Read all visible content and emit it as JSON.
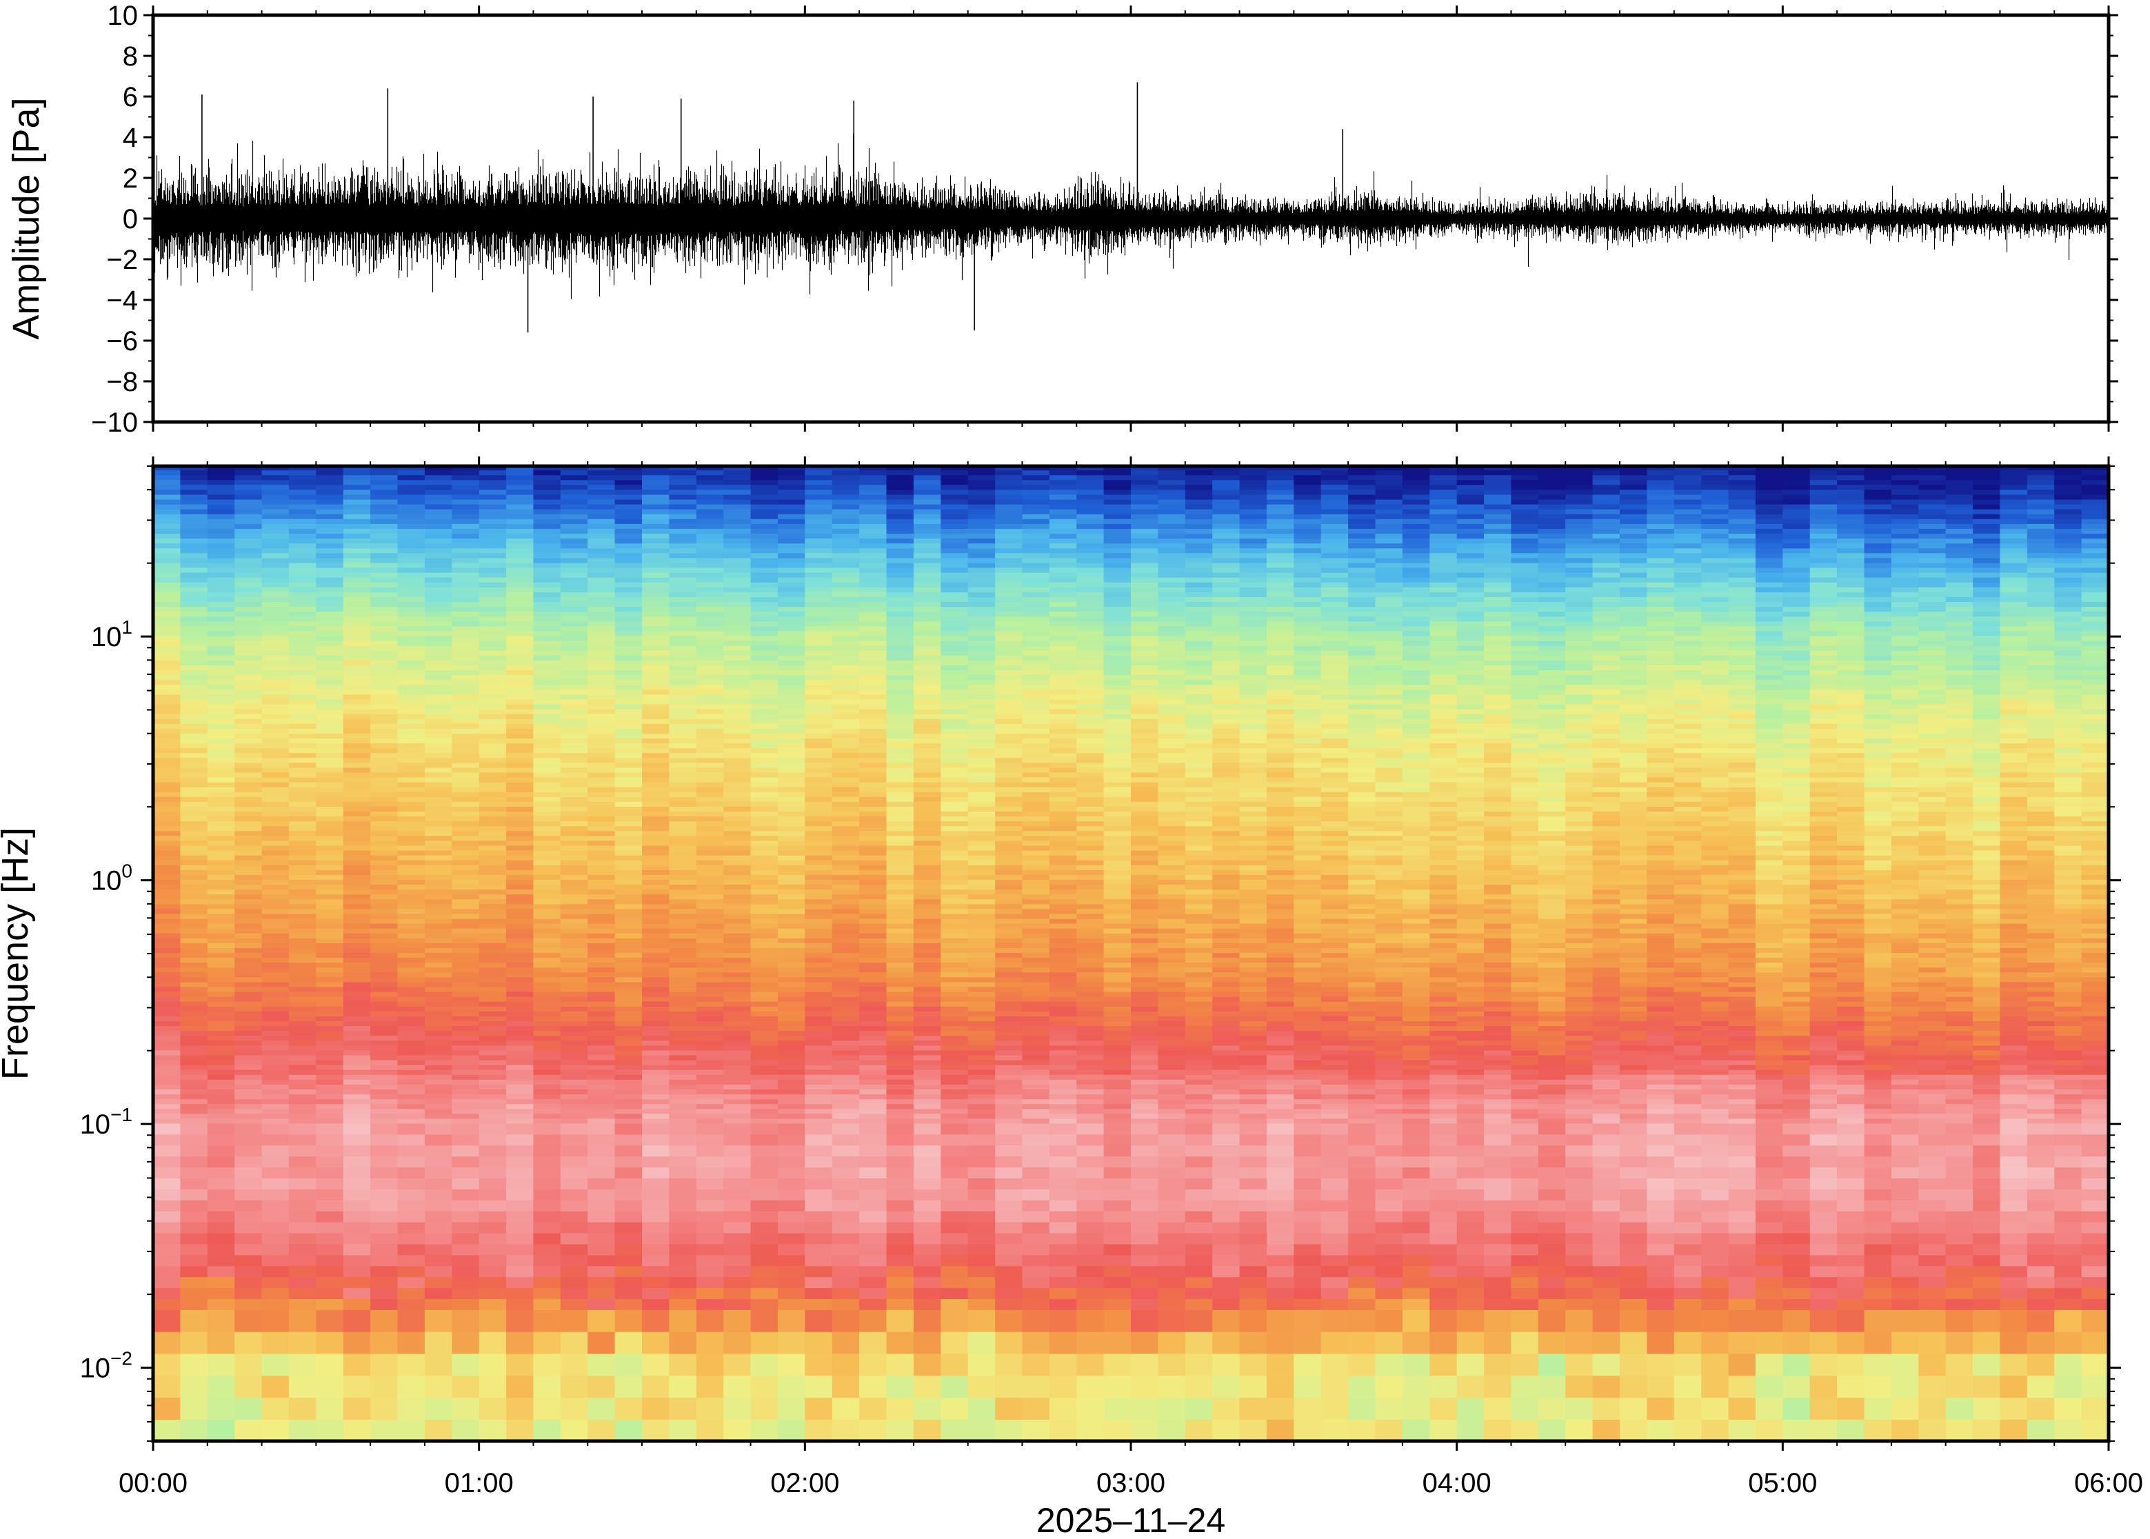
{
  "colors": {
    "frame": "#000000",
    "trace": "#000000",
    "background": "#ffffff"
  },
  "chart_data": [
    {
      "type": "line",
      "panel": "waveform",
      "ylabel": "Amplitude [Pa]",
      "ylim": [
        -10,
        10
      ],
      "yticks": [
        -10,
        -8,
        -6,
        -4,
        -2,
        0,
        2,
        4,
        6,
        8,
        10
      ],
      "yticklabels": [
        "−10",
        "−8",
        "−6",
        "−4",
        "−2",
        "0",
        "2",
        "4",
        "6",
        "8",
        "10"
      ],
      "xlim": [
        "00:00",
        "06:00"
      ],
      "envelope": {
        "t_hours": [
          0.0,
          0.25,
          0.5,
          0.75,
          1.0,
          1.25,
          1.5,
          1.75,
          2.0,
          2.25,
          2.5,
          2.75,
          2.9,
          3.0,
          3.25,
          3.5,
          3.75,
          4.0,
          4.25,
          4.5,
          4.75,
          5.0,
          5.25,
          5.5,
          5.75,
          6.0
        ],
        "typical_amplitude_pa": [
          2.6,
          2.4,
          2.5,
          2.6,
          2.4,
          2.7,
          2.6,
          2.5,
          2.4,
          2.2,
          1.9,
          1.3,
          2.3,
          1.6,
          1.2,
          1.0,
          1.5,
          0.8,
          1.1,
          1.4,
          1.0,
          0.8,
          0.9,
          0.9,
          1.0,
          0.9
        ]
      },
      "notable_peaks": [
        {
          "t_hours": 0.15,
          "value": 6.1
        },
        {
          "t_hours": 0.72,
          "value": 6.4
        },
        {
          "t_hours": 1.15,
          "value": -5.6
        },
        {
          "t_hours": 1.35,
          "value": 6.0
        },
        {
          "t_hours": 1.62,
          "value": 5.9
        },
        {
          "t_hours": 2.15,
          "value": 5.8
        },
        {
          "t_hours": 2.52,
          "value": -5.5
        },
        {
          "t_hours": 3.02,
          "value": 6.7
        },
        {
          "t_hours": 3.65,
          "value": 4.4
        }
      ]
    },
    {
      "type": "heatmap",
      "panel": "spectrogram",
      "ylabel": "Frequency [Hz]",
      "yscale": "log",
      "ylim": [
        0.005,
        50
      ],
      "yticks": [
        0.01,
        0.1,
        1,
        10
      ],
      "yticklabels": [
        {
          "base": "10",
          "exp": "−2"
        },
        {
          "base": "10",
          "exp": "−1"
        },
        {
          "base": "10",
          "exp": "0"
        },
        {
          "base": "10",
          "exp": "1"
        }
      ],
      "xlim": [
        "00:00",
        "06:00"
      ],
      "xticklabels": [
        "00:00",
        "01:00",
        "02:00",
        "03:00",
        "04:00",
        "05:00",
        "06:00"
      ],
      "xlabel": "2025–11–24",
      "colormap": [
        "#10138a",
        "#1f5fd6",
        "#4ab3ec",
        "#7fe1d8",
        "#b7f0a0",
        "#f2ee82",
        "#f6bf55",
        "#f28a45",
        "#ee5a55",
        "#f48c8c",
        "#f7c2c4"
      ]
    }
  ]
}
